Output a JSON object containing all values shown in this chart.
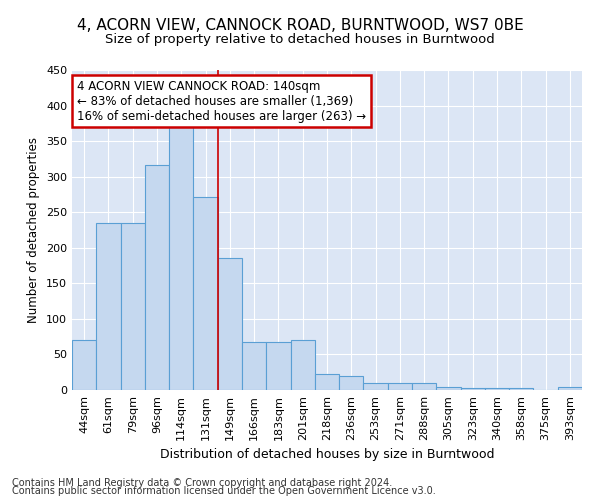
{
  "title1": "4, ACORN VIEW, CANNOCK ROAD, BURNTWOOD, WS7 0BE",
  "title2": "Size of property relative to detached houses in Burntwood",
  "xlabel": "Distribution of detached houses by size in Burntwood",
  "ylabel": "Number of detached properties",
  "categories": [
    "44sqm",
    "61sqm",
    "79sqm",
    "96sqm",
    "114sqm",
    "131sqm",
    "149sqm",
    "166sqm",
    "183sqm",
    "201sqm",
    "218sqm",
    "236sqm",
    "253sqm",
    "271sqm",
    "288sqm",
    "305sqm",
    "323sqm",
    "340sqm",
    "358sqm",
    "375sqm",
    "393sqm"
  ],
  "values": [
    70,
    235,
    235,
    317,
    370,
    272,
    185,
    67,
    68,
    70,
    22,
    19,
    10,
    10,
    10,
    4,
    3,
    3,
    3,
    0,
    4
  ],
  "bar_color": "#c5d8ef",
  "bar_edge_color": "#5a9fd4",
  "annotation_text": "4 ACORN VIEW CANNOCK ROAD: 140sqm\n← 83% of detached houses are smaller (1,369)\n16% of semi-detached houses are larger (263) →",
  "annotation_box_color": "#ffffff",
  "annotation_box_edge_color": "#cc0000",
  "vline_color": "#cc0000",
  "vline_x_index": 5.5,
  "footer1": "Contains HM Land Registry data © Crown copyright and database right 2024.",
  "footer2": "Contains public sector information licensed under the Open Government Licence v3.0.",
  "bg_color": "#ffffff",
  "plot_bg_color": "#dce6f5",
  "ylim": [
    0,
    450
  ],
  "grid_color": "#ffffff",
  "title1_fontsize": 11,
  "title2_fontsize": 9.5,
  "xlabel_fontsize": 9,
  "ylabel_fontsize": 8.5,
  "tick_fontsize": 8,
  "ann_fontsize": 8.5,
  "footer_fontsize": 7
}
